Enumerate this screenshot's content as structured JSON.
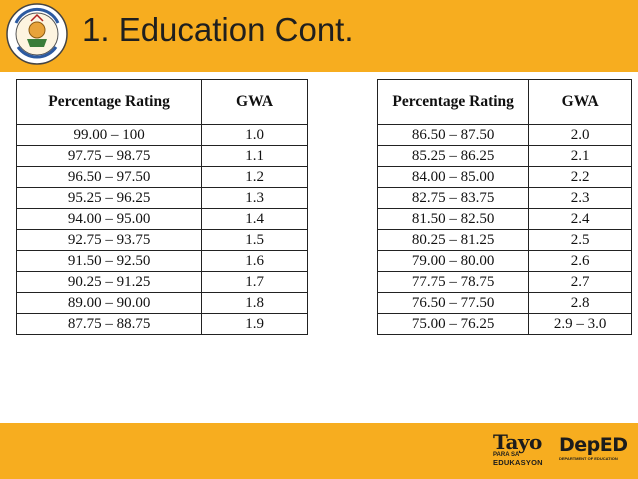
{
  "header": {
    "title": "1. Education Cont.",
    "seal_label": "Division of Gingoog City seal"
  },
  "table_left": {
    "headers": [
      "Percentage Rating",
      "GWA"
    ],
    "rows": [
      [
        "99.00 – 100",
        "1.0"
      ],
      [
        "97.75 – 98.75",
        "1.1"
      ],
      [
        "96.50 – 97.50",
        "1.2"
      ],
      [
        "95.25 – 96.25",
        "1.3"
      ],
      [
        "94.00 – 95.00",
        "1.4"
      ],
      [
        "92.75 – 93.75",
        "1.5"
      ],
      [
        "91.50 – 92.50",
        "1.6"
      ],
      [
        "90.25 – 91.25",
        "1.7"
      ],
      [
        "89.00 – 90.00",
        "1.8"
      ],
      [
        "87.75 – 88.75",
        "1.9"
      ]
    ]
  },
  "table_right": {
    "headers": [
      "Percentage Rating",
      "GWA"
    ],
    "rows": [
      [
        "86.50 – 87.50",
        "2.0"
      ],
      [
        "85.25 – 86.25",
        "2.1"
      ],
      [
        "84.00 – 85.00",
        "2.2"
      ],
      [
        "82.75 – 83.75",
        "2.3"
      ],
      [
        "81.50 – 82.50",
        "2.4"
      ],
      [
        "80.25 – 81.25",
        "2.5"
      ],
      [
        "79.00 – 80.00",
        "2.6"
      ],
      [
        "77.75 – 78.75",
        "2.7"
      ],
      [
        "76.50 – 77.50",
        "2.8"
      ],
      [
        "75.00 – 76.25",
        "2.9 – 3.0"
      ]
    ]
  },
  "footer": {
    "tayo_word": "Tayo",
    "tayo_sub1": "PARA SA",
    "tayo_sub2": "EDUKASYON",
    "deped_word": "DepED",
    "deped_sub": "DEPARTMENT OF EDUCATION"
  },
  "colors": {
    "accent": "#f7ad1f"
  }
}
